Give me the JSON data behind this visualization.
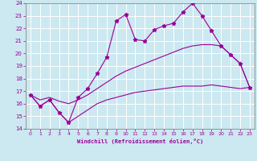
{
  "title": "",
  "xlabel": "Windchill (Refroidissement éolien,°C)",
  "xlim": [
    -0.5,
    23.5
  ],
  "ylim": [
    14,
    24
  ],
  "yticks": [
    14,
    15,
    16,
    17,
    18,
    19,
    20,
    21,
    22,
    23,
    24
  ],
  "xticks": [
    0,
    1,
    2,
    3,
    4,
    5,
    6,
    7,
    8,
    9,
    10,
    11,
    12,
    13,
    14,
    15,
    16,
    17,
    18,
    19,
    20,
    21,
    22,
    23
  ],
  "bg_color": "#cce8f0",
  "line_color": "#990099",
  "grid_color": "#aaddee",
  "line1_x": [
    0,
    1,
    2,
    3,
    4,
    5,
    6,
    7,
    8,
    9,
    10,
    11,
    12,
    13,
    14,
    15,
    16,
    17,
    18,
    19,
    20,
    21,
    22,
    23
  ],
  "line1_y": [
    16.7,
    15.8,
    16.3,
    15.3,
    14.5,
    16.5,
    17.2,
    18.4,
    19.7,
    22.6,
    23.1,
    21.1,
    21.0,
    21.9,
    22.2,
    22.4,
    23.3,
    24.0,
    23.0,
    21.8,
    20.6,
    19.9,
    19.2,
    17.3
  ],
  "line2_x": [
    0,
    1,
    2,
    3,
    4,
    5,
    6,
    7,
    8,
    9,
    10,
    11,
    12,
    13,
    14,
    15,
    16,
    17,
    18,
    19,
    20,
    21,
    22,
    23
  ],
  "line2_y": [
    16.7,
    16.3,
    16.5,
    16.2,
    16.0,
    16.3,
    16.7,
    17.2,
    17.7,
    18.2,
    18.6,
    18.9,
    19.2,
    19.5,
    19.8,
    20.1,
    20.4,
    20.6,
    20.7,
    20.7,
    20.6,
    19.9,
    19.2,
    17.3
  ],
  "line3_x": [
    0,
    1,
    2,
    3,
    4,
    5,
    6,
    7,
    8,
    9,
    10,
    11,
    12,
    13,
    14,
    15,
    16,
    17,
    18,
    19,
    20,
    21,
    22,
    23
  ],
  "line3_y": [
    16.7,
    15.8,
    16.3,
    15.3,
    14.5,
    15.0,
    15.5,
    16.0,
    16.3,
    16.5,
    16.7,
    16.9,
    17.0,
    17.1,
    17.2,
    17.3,
    17.4,
    17.4,
    17.4,
    17.5,
    17.4,
    17.3,
    17.2,
    17.3
  ]
}
